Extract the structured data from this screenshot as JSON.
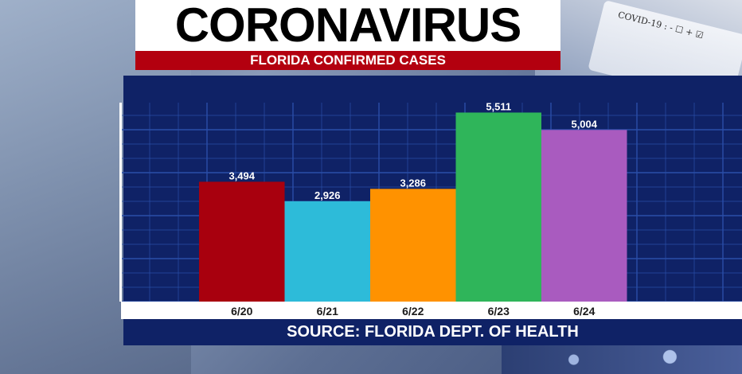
{
  "header": {
    "title": "CORONAVIRUS",
    "subtitle": "FLORIDA CONFIRMED CASES"
  },
  "footer": {
    "source": "SOURCE: FLORIDA DEPT. OF HEALTH"
  },
  "background": {
    "vial_label": "COVID-19 : - ☐ + ☑"
  },
  "colors": {
    "panel": "#0f2266",
    "grid": "#2a4ea8",
    "title_bg": "#ffffff",
    "subtitle_bg": "#b3000f",
    "bar_colors": [
      "#a8000e",
      "#2dbbd9",
      "#ff9200",
      "#2fb55a",
      "#a95bbf"
    ]
  },
  "chart_data": {
    "type": "bar",
    "title": "FLORIDA CONFIRMED CASES",
    "categories": [
      "6/20",
      "6/21",
      "6/22",
      "6/23",
      "6/24"
    ],
    "values": [
      3494,
      2926,
      3286,
      5511,
      5004
    ],
    "value_labels": [
      "3,494",
      "2,926",
      "3,286",
      "5,511",
      "5,004"
    ],
    "xlabel": "",
    "ylabel": "",
    "ylim": [
      0,
      5800
    ],
    "grid": true,
    "legend": "none"
  }
}
